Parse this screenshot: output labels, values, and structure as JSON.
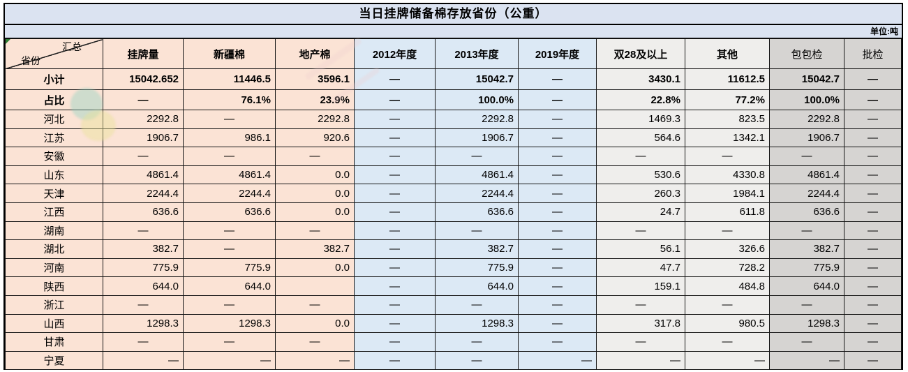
{
  "meta": {
    "title": "当日挂牌储备棉存放省份（公重）",
    "unit_label": "单位:吨"
  },
  "colors": {
    "title_bar_bg": "#dbe3f1",
    "peach_bg": "#fbe3d5",
    "blue_bg": "#dce9f5",
    "light_gray_bg": "#efeeec",
    "gray_bg": "#d6d4d2",
    "border": "#161616",
    "cell_flag_green": "#2e7d32",
    "watermark_teal": "#8bd3c0",
    "watermark_yellow": "#e9e298"
  },
  "icons": {
    "corner_flag": "cell-flag-indicator"
  },
  "header": {
    "corner_top": "汇总",
    "corner_bottom": "省份",
    "columns": [
      {
        "label": "挂牌量",
        "group": "peach",
        "bold": true
      },
      {
        "label": "新疆棉",
        "group": "peach",
        "bold": true
      },
      {
        "label": "地产棉",
        "group": "peach",
        "bold": true
      },
      {
        "label": "2012年度",
        "group": "blue",
        "bold": true
      },
      {
        "label": "2013年度",
        "group": "blue",
        "bold": true
      },
      {
        "label": "2019年度",
        "group": "blue",
        "bold": true
      },
      {
        "label": "双28及以上",
        "group": "lgray",
        "bold": true
      },
      {
        "label": "其他",
        "group": "lgray",
        "bold": true
      },
      {
        "label": "包包检",
        "group": "gray",
        "bold": false
      },
      {
        "label": "批检",
        "group": "gray",
        "bold": false
      }
    ]
  },
  "table": {
    "rows": [
      {
        "label": "小计",
        "bold": true,
        "cells": [
          "15042.652",
          "11446.5",
          "3596.1",
          "—",
          "15042.7",
          "—",
          "3430.1",
          "11612.5",
          "15042.7",
          "—"
        ]
      },
      {
        "label": "占比",
        "bold": true,
        "cells": [
          "—",
          "76.1%",
          "23.9%",
          "—",
          "100.0%",
          "—",
          "22.8%",
          "77.2%",
          "100.0%",
          "—"
        ]
      },
      {
        "label": "河北",
        "cells": [
          "2292.8",
          "—",
          "2292.8",
          "—",
          "2292.8",
          "—",
          "1469.3",
          "823.5",
          "2292.8",
          "—"
        ]
      },
      {
        "label": "江苏",
        "cells": [
          "1906.7",
          "986.1",
          "920.6",
          "—",
          "1906.7",
          "—",
          "564.6",
          "1342.1",
          "1906.7",
          "—"
        ]
      },
      {
        "label": "安徽",
        "cells": [
          "—",
          "—",
          "—",
          "—",
          "—",
          "—",
          "—",
          "—",
          "—",
          "—"
        ]
      },
      {
        "label": "山东",
        "cells": [
          "4861.4",
          "4861.4",
          "0.0",
          "—",
          "4861.4",
          "—",
          "530.6",
          "4330.8",
          "4861.4",
          "—"
        ]
      },
      {
        "label": "天津",
        "cells": [
          "2244.4",
          "2244.4",
          "0.0",
          "—",
          "2244.4",
          "—",
          "260.3",
          "1984.1",
          "2244.4",
          "—"
        ]
      },
      {
        "label": "江西",
        "cells": [
          "636.6",
          "636.6",
          "0.0",
          "—",
          "636.6",
          "—",
          "24.7",
          "611.8",
          "636.6",
          "—"
        ]
      },
      {
        "label": "湖南",
        "cells": [
          "—",
          "—",
          "—",
          "—",
          "—",
          "—",
          "—",
          "—",
          "—",
          "—"
        ]
      },
      {
        "label": "湖北",
        "cells": [
          "382.7",
          "—",
          "382.7",
          "—",
          "382.7",
          "—",
          "56.1",
          "326.6",
          "382.7",
          "—"
        ]
      },
      {
        "label": "河南",
        "cells": [
          "775.9",
          "775.9",
          "0.0",
          "—",
          "775.9",
          "—",
          "47.7",
          "728.2",
          "775.9",
          "—"
        ]
      },
      {
        "label": "陕西",
        "cells": [
          "644.0",
          "644.0",
          "",
          "—",
          "644.0",
          "—",
          "159.1",
          "484.8",
          "644.0",
          "—"
        ]
      },
      {
        "label": "浙江",
        "cells": [
          "—",
          "—",
          "—",
          "—",
          "—",
          "—",
          "—",
          "—",
          "—",
          "—"
        ]
      },
      {
        "label": "山西",
        "cells": [
          "1298.3",
          "1298.3",
          "0.0",
          "—",
          "1298.3",
          "—",
          "317.8",
          "980.5",
          "1298.3",
          "—"
        ]
      },
      {
        "label": "甘肃",
        "cells": [
          "—",
          "—",
          "—",
          "—",
          "—",
          "—",
          "—",
          "—",
          "—",
          "—"
        ]
      },
      {
        "label": "宁夏",
        "cells": [
          "—",
          "—",
          "—",
          "—",
          "—",
          "—",
          "—",
          "—",
          "—",
          "—"
        ],
        "dash_aligns": [
          "right",
          "right",
          "right",
          "center",
          "center",
          "right",
          "right",
          "right",
          "right",
          "center"
        ]
      }
    ]
  }
}
